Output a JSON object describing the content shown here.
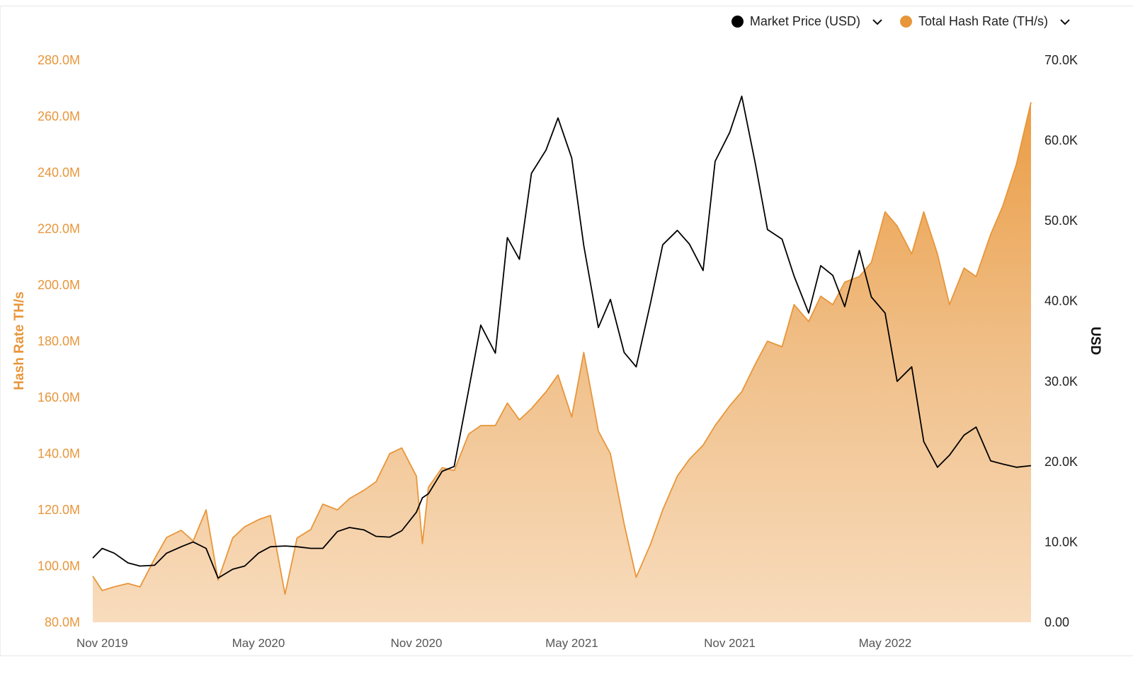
{
  "legend": [
    {
      "label": "Market Price (USD)",
      "color": "#000000",
      "icon": "chevron-down-icon"
    },
    {
      "label": "Total Hash Rate (TH/s)",
      "color": "#e8963a",
      "icon": "chevron-down-icon"
    }
  ],
  "chart_data": {
    "type": "area+line",
    "x_range": [
      "2019-10-21",
      "2022-10-18"
    ],
    "x_ticks": [
      {
        "date": "2019-11-01",
        "label": "Nov 2019"
      },
      {
        "date": "2020-05-01",
        "label": "May 2020"
      },
      {
        "date": "2020-11-01",
        "label": "Nov 2020"
      },
      {
        "date": "2021-05-01",
        "label": "May 2021"
      },
      {
        "date": "2021-11-01",
        "label": "Nov 2021"
      },
      {
        "date": "2022-05-01",
        "label": "May 2022"
      }
    ],
    "y_left": {
      "label": "Hash Rate TH/s",
      "range": [
        80000000,
        280000000
      ],
      "ticks": [
        "80.0M",
        "100.0M",
        "120.0M",
        "140.0M",
        "160.0M",
        "180.0M",
        "200.0M",
        "220.0M",
        "240.0M",
        "260.0M",
        "280.0M"
      ],
      "color": "#e8963a"
    },
    "y_right": {
      "label": "USD",
      "range": [
        0,
        70000
      ],
      "ticks": [
        "0.00",
        "10.0K",
        "20.0K",
        "30.0K",
        "40.0K",
        "50.0K",
        "60.0K",
        "70.0K"
      ],
      "color": "#000000"
    },
    "grid": false,
    "legend_position": "top-right",
    "x": [
      "2019-10-21",
      "2019-11-01",
      "2019-11-15",
      "2019-12-01",
      "2019-12-15",
      "2020-01-01",
      "2020-01-15",
      "2020-02-01",
      "2020-02-15",
      "2020-03-01",
      "2020-03-15",
      "2020-04-01",
      "2020-04-15",
      "2020-05-01",
      "2020-05-15",
      "2020-06-01",
      "2020-06-15",
      "2020-07-01",
      "2020-07-15",
      "2020-08-01",
      "2020-08-15",
      "2020-09-01",
      "2020-09-15",
      "2020-10-01",
      "2020-10-15",
      "2020-11-01",
      "2020-11-08",
      "2020-11-15",
      "2020-12-01",
      "2020-12-15",
      "2021-01-01",
      "2021-01-15",
      "2021-02-01",
      "2021-02-15",
      "2021-03-01",
      "2021-03-15",
      "2021-04-01",
      "2021-04-15",
      "2021-05-01",
      "2021-05-15",
      "2021-06-01",
      "2021-06-15",
      "2021-07-01",
      "2021-07-15",
      "2021-08-01",
      "2021-08-15",
      "2021-09-01",
      "2021-09-15",
      "2021-10-01",
      "2021-10-15",
      "2021-11-01",
      "2021-11-15",
      "2021-12-01",
      "2021-12-15",
      "2022-01-01",
      "2022-01-15",
      "2022-02-01",
      "2022-02-15",
      "2022-03-01",
      "2022-03-15",
      "2022-04-01",
      "2022-04-15",
      "2022-05-01",
      "2022-05-15",
      "2022-06-01",
      "2022-06-15",
      "2022-07-01",
      "2022-07-15",
      "2022-08-01",
      "2022-08-15",
      "2022-09-01",
      "2022-09-15",
      "2022-10-01",
      "2022-10-18"
    ],
    "series": [
      {
        "name": "Total Hash Rate (TH/s)",
        "axis": "left",
        "kind": "area",
        "color": "#e8963a",
        "unit": "M TH/s",
        "values": [
          96.4,
          91.3,
          92.6,
          93.8,
          92.6,
          102.6,
          110.2,
          112.7,
          108.9,
          120.0,
          95.0,
          110.0,
          114.0,
          116.5,
          118.0,
          90.0,
          110.0,
          113.0,
          122.0,
          120.0,
          124.0,
          127.0,
          130.0,
          140.0,
          142.0,
          132.0,
          108.0,
          128.0,
          135.0,
          134.0,
          147.0,
          150.0,
          150.0,
          158.0,
          152.0,
          156.0,
          162.0,
          168.0,
          153.0,
          176.0,
          148.0,
          140.0,
          115.0,
          96.0,
          108.0,
          120.0,
          132.0,
          138.0,
          143.0,
          150.0,
          157.0,
          162.0,
          172.0,
          180.0,
          178.0,
          193.0,
          187.0,
          196.0,
          193.0,
          201.0,
          203.0,
          208.0,
          226.0,
          221.0,
          211.0,
          226.0,
          211.0,
          193.0,
          206.0,
          203.0,
          218.0,
          228.0,
          243.0,
          265.0
        ]
      },
      {
        "name": "Market Price (USD)",
        "axis": "right",
        "kind": "line",
        "color": "#000000",
        "unit": "K USD",
        "values": [
          8.0,
          9.2,
          8.6,
          7.4,
          7.0,
          7.1,
          8.6,
          9.4,
          10.0,
          9.2,
          5.5,
          6.6,
          7.0,
          8.6,
          9.4,
          9.5,
          9.4,
          9.2,
          9.2,
          11.3,
          11.8,
          11.5,
          10.7,
          10.6,
          11.4,
          13.7,
          15.5,
          16.0,
          18.8,
          19.4,
          29.0,
          37.0,
          33.5,
          47.9,
          45.2,
          55.9,
          58.8,
          62.8,
          57.8,
          46.9,
          36.7,
          40.2,
          33.6,
          31.8,
          39.9,
          47.0,
          48.8,
          47.1,
          43.8,
          57.4,
          61.0,
          65.5,
          57.0,
          48.9,
          47.7,
          43.1,
          38.5,
          44.4,
          43.2,
          39.3,
          46.3,
          40.5,
          38.5,
          30.0,
          31.8,
          22.5,
          19.3,
          20.8,
          23.3,
          24.3,
          20.1,
          19.7,
          19.3,
          19.5
        ]
      }
    ]
  }
}
